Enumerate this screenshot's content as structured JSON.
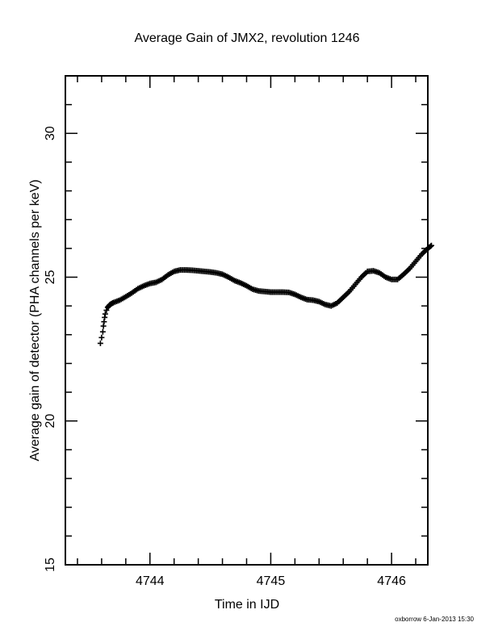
{
  "chart_data": {
    "type": "scatter",
    "title": "Average Gain of JMX2, revolution 1246",
    "xlabel": "Time in IJD",
    "ylabel": "Average gain of detector (PHA channels per keV)",
    "xlim": [
      4743.3,
      4746.3
    ],
    "ylim": [
      15,
      32
    ],
    "x_ticks": [
      4744,
      4745,
      4746
    ],
    "x_tick_labels": [
      "4744",
      "4745",
      "4746"
    ],
    "y_ticks": [
      15,
      20,
      25,
      30
    ],
    "y_tick_labels": [
      "15",
      "20",
      "25",
      "30"
    ],
    "marker": "plus",
    "color": "#000000",
    "grid": false,
    "legend": "none",
    "points": [
      [
        4743.59,
        22.7
      ],
      [
        4743.6,
        22.9
      ],
      [
        4743.61,
        23.1
      ],
      [
        4743.615,
        23.3
      ],
      [
        4743.62,
        23.45
      ],
      [
        4743.625,
        23.6
      ],
      [
        4743.63,
        23.72
      ],
      [
        4743.64,
        23.85
      ],
      [
        4743.65,
        23.95
      ],
      [
        4743.67,
        24.05
      ],
      [
        4743.7,
        24.12
      ],
      [
        4743.75,
        24.2
      ],
      [
        4743.8,
        24.32
      ],
      [
        4743.85,
        24.45
      ],
      [
        4743.9,
        24.6
      ],
      [
        4743.95,
        24.7
      ],
      [
        4744.0,
        24.78
      ],
      [
        4744.05,
        24.82
      ],
      [
        4744.1,
        24.92
      ],
      [
        4744.15,
        25.08
      ],
      [
        4744.2,
        25.2
      ],
      [
        4744.25,
        25.25
      ],
      [
        4744.3,
        25.25
      ],
      [
        4744.35,
        25.24
      ],
      [
        4744.4,
        25.22
      ],
      [
        4744.45,
        25.2
      ],
      [
        4744.5,
        25.18
      ],
      [
        4744.55,
        25.15
      ],
      [
        4744.6,
        25.1
      ],
      [
        4744.65,
        25.0
      ],
      [
        4744.7,
        24.88
      ],
      [
        4744.75,
        24.8
      ],
      [
        4744.8,
        24.7
      ],
      [
        4744.85,
        24.58
      ],
      [
        4744.9,
        24.52
      ],
      [
        4744.95,
        24.5
      ],
      [
        4745.0,
        24.48
      ],
      [
        4745.05,
        24.48
      ],
      [
        4745.1,
        24.48
      ],
      [
        4745.15,
        24.47
      ],
      [
        4745.2,
        24.4
      ],
      [
        4745.25,
        24.3
      ],
      [
        4745.3,
        24.22
      ],
      [
        4745.35,
        24.2
      ],
      [
        4745.4,
        24.15
      ],
      [
        4745.45,
        24.05
      ],
      [
        4745.5,
        24.0
      ],
      [
        4745.55,
        24.1
      ],
      [
        4745.6,
        24.3
      ],
      [
        4745.65,
        24.5
      ],
      [
        4745.7,
        24.75
      ],
      [
        4745.75,
        25.0
      ],
      [
        4745.8,
        25.2
      ],
      [
        4745.85,
        25.22
      ],
      [
        4745.9,
        25.15
      ],
      [
        4745.95,
        25.0
      ],
      [
        4746.0,
        24.92
      ],
      [
        4746.05,
        24.92
      ],
      [
        4746.1,
        25.1
      ],
      [
        4746.15,
        25.3
      ],
      [
        4746.2,
        25.55
      ],
      [
        4746.25,
        25.8
      ],
      [
        4746.3,
        26.0
      ],
      [
        4746.33,
        26.1
      ]
    ]
  },
  "footer": {
    "credit": "oxborrow  6-Jan-2013 15:30"
  }
}
